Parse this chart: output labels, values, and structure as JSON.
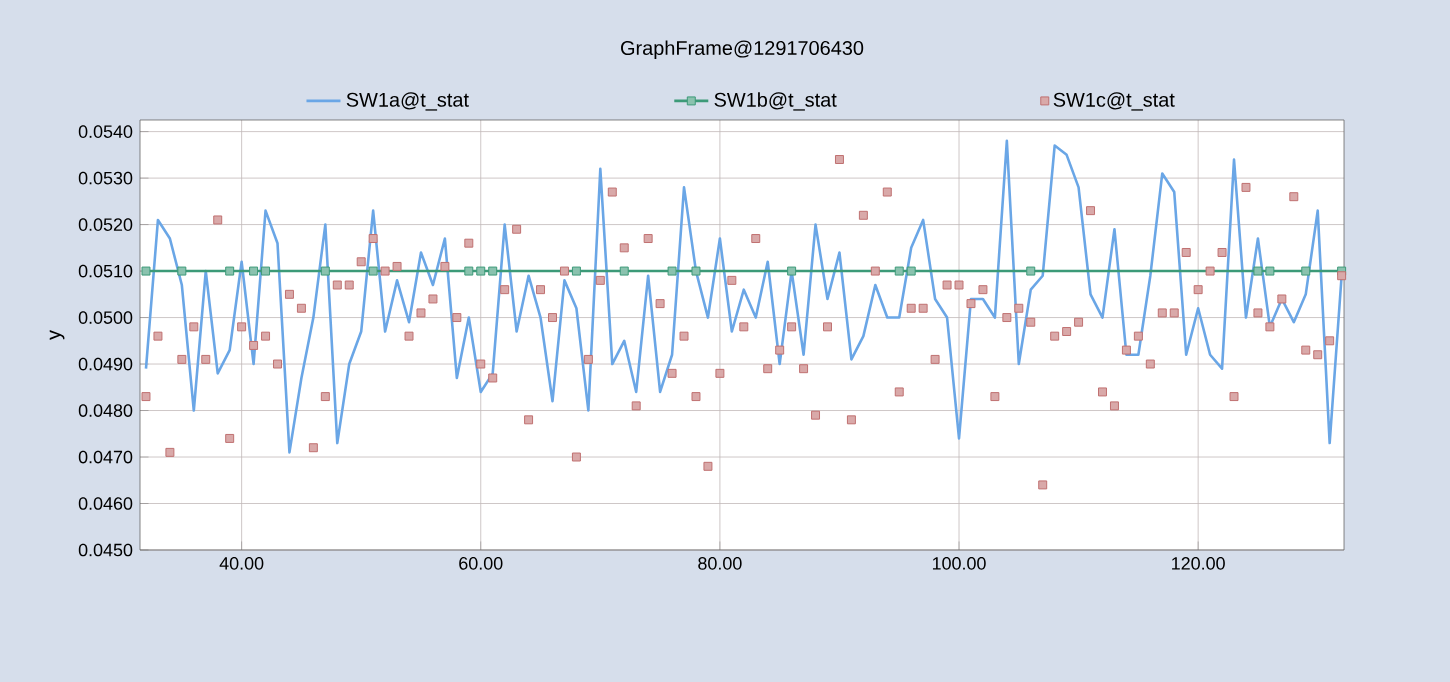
{
  "chart_data": {
    "type": "line",
    "title": "GraphFrame@1291706430",
    "ylabel": "y",
    "x": [
      32,
      33,
      34,
      35,
      36,
      37,
      38,
      39,
      40,
      41,
      42,
      43,
      44,
      45,
      46,
      47,
      48,
      49,
      50,
      51,
      52,
      53,
      54,
      55,
      56,
      57,
      58,
      59,
      60,
      61,
      62,
      63,
      64,
      65,
      66,
      67,
      68,
      69,
      70,
      71,
      72,
      73,
      74,
      75,
      76,
      77,
      78,
      79,
      80,
      81,
      82,
      83,
      84,
      85,
      86,
      87,
      88,
      89,
      90,
      91,
      92,
      93,
      94,
      95,
      96,
      97,
      98,
      99,
      100,
      101,
      102,
      103,
      104,
      105,
      106,
      107,
      108,
      109,
      110,
      111,
      112,
      113,
      114,
      115,
      116,
      117,
      118,
      119,
      120,
      121,
      122,
      123,
      124,
      125,
      126,
      127,
      128,
      129,
      130,
      131,
      132
    ],
    "series": [
      {
        "name": "SW1a@t_stat",
        "color": "#6aa6e6",
        "values": [
          0.0489,
          0.0521,
          0.0517,
          0.0507,
          0.048,
          0.051,
          0.0488,
          0.0493,
          0.0512,
          0.049,
          0.0523,
          0.0516,
          0.0471,
          0.0487,
          0.05,
          0.052,
          0.0473,
          0.049,
          0.0497,
          0.0523,
          0.0497,
          0.0508,
          0.0499,
          0.0514,
          0.0507,
          0.0517,
          0.0487,
          0.05,
          0.0484,
          0.0488,
          0.052,
          0.0497,
          0.0509,
          0.05,
          0.0482,
          0.0508,
          0.0502,
          0.048,
          0.0532,
          0.049,
          0.0495,
          0.0484,
          0.0509,
          0.0484,
          0.0492,
          0.0528,
          0.051,
          0.05,
          0.0517,
          0.0497,
          0.0506,
          0.05,
          0.0512,
          0.049,
          0.051,
          0.0492,
          0.052,
          0.0504,
          0.0514,
          0.0491,
          0.0496,
          0.0507,
          0.05,
          0.05,
          0.0515,
          0.0521,
          0.0504,
          0.05,
          0.0474,
          0.0504,
          0.0504,
          0.05,
          0.0538,
          0.049,
          0.0506,
          0.0509,
          0.0537,
          0.0535,
          0.0528,
          0.0505,
          0.05,
          0.0519,
          0.0492,
          0.0492,
          0.0509,
          0.0531,
          0.0527,
          0.0492,
          0.0502,
          0.0492,
          0.0489,
          0.0534,
          0.05,
          0.0517,
          0.0498,
          0.0504,
          0.0499,
          0.0505,
          0.0523,
          0.0473,
          0.0509
        ]
      },
      {
        "name": "SW1b@t_stat",
        "color": "#3c9a78",
        "marker": "square",
        "x": [
          32,
          35,
          39,
          41,
          42,
          47,
          51,
          59,
          60,
          61,
          68,
          72,
          76,
          78,
          86,
          95,
          96,
          106,
          125,
          126,
          129,
          132
        ],
        "values": [
          0.051,
          0.051,
          0.051,
          0.051,
          0.051,
          0.051,
          0.051,
          0.051,
          0.051,
          0.051,
          0.051,
          0.051,
          0.051,
          0.051,
          0.051,
          0.051,
          0.051,
          0.051,
          0.051,
          0.051,
          0.051,
          0.051
        ]
      },
      {
        "name": "SW1c@t_stat",
        "color": "#c07070",
        "type": "scatter",
        "marker": "square",
        "values": [
          0.0483,
          0.0496,
          0.0471,
          0.0491,
          0.0498,
          0.0491,
          0.0521,
          0.0474,
          0.0498,
          0.0494,
          0.0496,
          0.049,
          0.0505,
          0.0502,
          0.0472,
          0.0483,
          0.0507,
          0.0507,
          0.0512,
          0.0517,
          0.051,
          0.0511,
          0.0496,
          0.0501,
          0.0504,
          0.0511,
          0.05,
          0.0516,
          0.049,
          0.0487,
          0.0506,
          0.0519,
          0.0478,
          0.0506,
          0.05,
          0.051,
          0.047,
          0.0491,
          0.0508,
          0.0527,
          0.0515,
          0.0481,
          0.0517,
          0.0503,
          0.0488,
          0.0496,
          0.0483,
          0.0468,
          0.0488,
          0.0508,
          0.0498,
          0.0517,
          0.0489,
          0.0493,
          0.0498,
          0.0489,
          0.0479,
          0.0498,
          0.0534,
          0.0478,
          0.0522,
          0.051,
          0.0527,
          0.0484,
          0.0502,
          0.0502,
          0.0491,
          0.0507,
          0.0507,
          0.0503,
          0.0506,
          0.0483,
          0.05,
          0.0502,
          0.0499,
          0.0464,
          0.0496,
          0.0497,
          0.0499,
          0.0523,
          0.0484,
          0.0481,
          0.0493,
          0.0496,
          0.049,
          0.0501,
          0.0501,
          0.0514,
          0.0506,
          0.051,
          0.0514,
          0.0483,
          0.0528,
          0.0501,
          0.0498,
          0.0504,
          0.0526,
          0.0493,
          0.0492,
          0.0495,
          0.0509
        ]
      }
    ],
    "xlim": [
      31.5,
      132.2
    ],
    "ylim": [
      0.045,
      0.05425
    ],
    "xticks": [
      {
        "value": 40,
        "label": "40.00"
      },
      {
        "value": 60,
        "label": "60.00"
      },
      {
        "value": 80,
        "label": "80.00"
      },
      {
        "value": 100,
        "label": "100.00"
      },
      {
        "value": 120,
        "label": "120.00"
      }
    ],
    "yticks": [
      {
        "value": 0.045,
        "label": "0.0450"
      },
      {
        "value": 0.046,
        "label": "0.0460"
      },
      {
        "value": 0.047,
        "label": "0.0470"
      },
      {
        "value": 0.048,
        "label": "0.0480"
      },
      {
        "value": 0.049,
        "label": "0.0490"
      },
      {
        "value": 0.05,
        "label": "0.0500"
      },
      {
        "value": 0.051,
        "label": "0.0510"
      },
      {
        "value": 0.052,
        "label": "0.0520"
      },
      {
        "value": 0.053,
        "label": "0.0530"
      },
      {
        "value": 0.054,
        "label": "0.0540"
      }
    ],
    "grid": true,
    "legend": "top"
  }
}
